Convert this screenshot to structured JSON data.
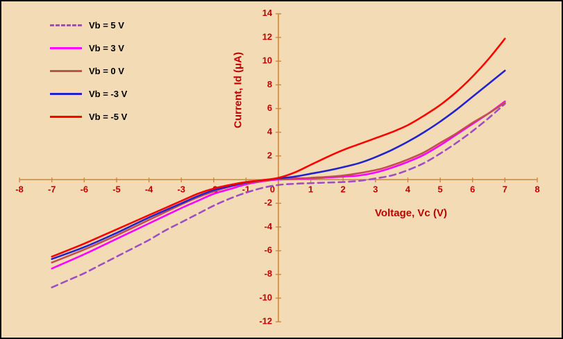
{
  "colors": {
    "background": "#F2DBB5",
    "border": "#000000",
    "axis_line": "#C8873C",
    "tick_label": "#C00000",
    "axis_title": "#C00000",
    "legend_text": "#000000"
  },
  "chart_data": {
    "type": "line",
    "title": "",
    "xlabel": "Voltage, Vc (V)",
    "ylabel": "Current, Id (μA)",
    "xlim": [
      -8,
      8
    ],
    "ylim": [
      -12,
      14
    ],
    "x_ticks": [
      -8,
      -7,
      -6,
      -5,
      -4,
      -3,
      -2,
      -1,
      0,
      1,
      2,
      3,
      4,
      5,
      6,
      7,
      8
    ],
    "y_ticks": [
      -12,
      -10,
      -8,
      -6,
      -4,
      -2,
      0,
      2,
      4,
      6,
      8,
      10,
      12,
      14
    ],
    "grid": false,
    "legend_position": "top-left",
    "series": [
      {
        "name": "Vb = 5 V",
        "color": "#9D4EC2",
        "dashed": true,
        "points": [
          [
            -7,
            -9.1
          ],
          [
            -6.5,
            -8.5
          ],
          [
            -6,
            -7.9
          ],
          [
            -5.5,
            -7.2
          ],
          [
            -5,
            -6.5
          ],
          [
            -4.5,
            -5.8
          ],
          [
            -4,
            -5.1
          ],
          [
            -3.5,
            -4.3
          ],
          [
            -3,
            -3.6
          ],
          [
            -2.5,
            -2.9
          ],
          [
            -2,
            -2.2
          ],
          [
            -1.5,
            -1.6
          ],
          [
            -1,
            -1.1
          ],
          [
            -0.5,
            -0.7
          ],
          [
            0,
            -0.45
          ],
          [
            0.5,
            -0.35
          ],
          [
            1,
            -0.3
          ],
          [
            1.5,
            -0.25
          ],
          [
            2,
            -0.2
          ],
          [
            2.5,
            -0.1
          ],
          [
            3,
            0.1
          ],
          [
            3.5,
            0.35
          ],
          [
            4,
            0.8
          ],
          [
            4.5,
            1.4
          ],
          [
            5,
            2.2
          ],
          [
            5.5,
            3.1
          ],
          [
            6,
            4.1
          ],
          [
            6.5,
            5.2
          ],
          [
            7,
            6.4
          ]
        ]
      },
      {
        "name": "Vb = 3 V",
        "color": "#FF00FF",
        "dashed": false,
        "points": [
          [
            -7,
            -7.5
          ],
          [
            -6,
            -6.3
          ],
          [
            -5,
            -5.0
          ],
          [
            -4,
            -3.7
          ],
          [
            -3,
            -2.4
          ],
          [
            -2.5,
            -1.8
          ],
          [
            -2,
            -1.2
          ],
          [
            -1.5,
            -0.8
          ],
          [
            -1,
            -0.4
          ],
          [
            -0.5,
            -0.15
          ],
          [
            0,
            0
          ],
          [
            1,
            0.1
          ],
          [
            2,
            0.25
          ],
          [
            2.5,
            0.35
          ],
          [
            3,
            0.6
          ],
          [
            3.5,
            1.0
          ],
          [
            4,
            1.5
          ],
          [
            4.5,
            2.1
          ],
          [
            5,
            2.9
          ],
          [
            5.5,
            3.8
          ],
          [
            6,
            4.7
          ],
          [
            6.5,
            5.6
          ],
          [
            7,
            6.6
          ]
        ]
      },
      {
        "name": "Vb = 0 V",
        "color": "#C0504D",
        "dashed": false,
        "points": [
          [
            -7,
            -7.0
          ],
          [
            -6,
            -5.9
          ],
          [
            -5,
            -4.7
          ],
          [
            -4,
            -3.4
          ],
          [
            -3,
            -2.1
          ],
          [
            -2.5,
            -1.5
          ],
          [
            -2,
            -1.0
          ],
          [
            -1.5,
            -0.6
          ],
          [
            -1,
            -0.3
          ],
          [
            -0.5,
            -0.1
          ],
          [
            0,
            0.05
          ],
          [
            0.5,
            0.1
          ],
          [
            1,
            0.15
          ],
          [
            2,
            0.35
          ],
          [
            3,
            0.8
          ],
          [
            3.5,
            1.2
          ],
          [
            4,
            1.7
          ],
          [
            4.5,
            2.3
          ],
          [
            5,
            3.1
          ],
          [
            5.5,
            3.9
          ],
          [
            6,
            4.8
          ],
          [
            6.5,
            5.6
          ],
          [
            7,
            6.5
          ]
        ]
      },
      {
        "name": "Vb = -3 V",
        "color": "#2222CC",
        "dashed": false,
        "points": [
          [
            -7,
            -6.7
          ],
          [
            -6,
            -5.7
          ],
          [
            -5,
            -4.5
          ],
          [
            -4,
            -3.2
          ],
          [
            -3,
            -2.0
          ],
          [
            -2.5,
            -1.4
          ],
          [
            -2,
            -0.9
          ],
          [
            -1.5,
            -0.55
          ],
          [
            -1,
            -0.25
          ],
          [
            -0.5,
            -0.05
          ],
          [
            0,
            0.1
          ],
          [
            0.5,
            0.25
          ],
          [
            1,
            0.5
          ],
          [
            1.5,
            0.75
          ],
          [
            2,
            1.05
          ],
          [
            2.5,
            1.4
          ],
          [
            3,
            1.9
          ],
          [
            3.5,
            2.5
          ],
          [
            4,
            3.2
          ],
          [
            4.5,
            4.0
          ],
          [
            5,
            4.9
          ],
          [
            5.5,
            5.9
          ],
          [
            6,
            7.0
          ],
          [
            6.5,
            8.1
          ],
          [
            7,
            9.2
          ]
        ]
      },
      {
        "name": "Vb = -5 V",
        "color": "#FF0000",
        "dashed": false,
        "points": [
          [
            -7,
            -6.5
          ],
          [
            -6,
            -5.4
          ],
          [
            -5,
            -4.2
          ],
          [
            -4,
            -3.0
          ],
          [
            -3,
            -1.8
          ],
          [
            -2.5,
            -1.2
          ],
          [
            -2,
            -0.75
          ],
          [
            -1.5,
            -0.45
          ],
          [
            -1,
            -0.2
          ],
          [
            -0.5,
            -0.05
          ],
          [
            0,
            0.15
          ],
          [
            0.5,
            0.6
          ],
          [
            1,
            1.25
          ],
          [
            1.5,
            1.9
          ],
          [
            2,
            2.5
          ],
          [
            2.5,
            3.0
          ],
          [
            3,
            3.5
          ],
          [
            3.5,
            4.0
          ],
          [
            4,
            4.6
          ],
          [
            4.5,
            5.4
          ],
          [
            5,
            6.3
          ],
          [
            5.5,
            7.4
          ],
          [
            6,
            8.7
          ],
          [
            6.5,
            10.2
          ],
          [
            7,
            11.9
          ]
        ]
      }
    ]
  }
}
